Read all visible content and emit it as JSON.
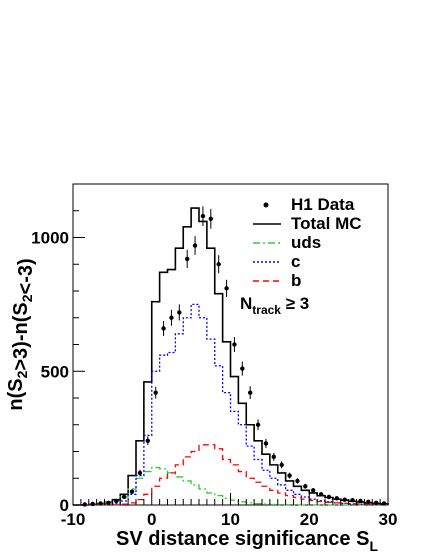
{
  "chart_data": {
    "type": "histogram",
    "xlabel": "SV distance significance S_L",
    "ylabel": "n(S_2>3)-n(S_2<-3)",
    "xlim": [
      -10,
      30
    ],
    "ylim": [
      0,
      1200
    ],
    "xticks": [
      "-10",
      "0",
      "10",
      "20",
      "30"
    ],
    "yticks": [
      "0",
      "500",
      "1000"
    ],
    "bin_edges": [
      -10,
      -9,
      -8,
      -7,
      -6,
      -5,
      -4,
      -3,
      -2,
      -1,
      0,
      1,
      2,
      3,
      4,
      5,
      6,
      7,
      8,
      9,
      10,
      11,
      12,
      13,
      14,
      15,
      16,
      17,
      18,
      19,
      20,
      21,
      22,
      23,
      24,
      25,
      26,
      27,
      28,
      29,
      30
    ],
    "legend": {
      "position": "top-right",
      "entries": [
        "H1 Data",
        "Total MC",
        "uds",
        "c",
        "b"
      ]
    },
    "annotation": "N_track ≥ 3",
    "series": [
      {
        "name": "Total MC",
        "style": "solid",
        "color": "#000000",
        "values": [
          0,
          0,
          2,
          5,
          10,
          20,
          40,
          110,
          240,
          460,
          760,
          870,
          880,
          960,
          1040,
          1110,
          1060,
          960,
          790,
          610,
          480,
          380,
          300,
          240,
          190,
          150,
          120,
          90,
          70,
          55,
          45,
          35,
          28,
          22,
          18,
          14,
          11,
          8,
          6,
          4
        ]
      },
      {
        "name": "uds",
        "style": "dashdot",
        "color": "#33cc33",
        "values": [
          0,
          0,
          1,
          3,
          8,
          15,
          30,
          60,
          100,
          125,
          140,
          135,
          120,
          105,
          90,
          75,
          60,
          45,
          35,
          25,
          18,
          12,
          8,
          5,
          3,
          2,
          1,
          1,
          0,
          0,
          0,
          0,
          0,
          0,
          0,
          0,
          0,
          0,
          0,
          0
        ]
      },
      {
        "name": "c",
        "style": "dotted",
        "color": "#0000ff",
        "values": [
          0,
          0,
          0,
          1,
          3,
          6,
          15,
          40,
          110,
          260,
          500,
          560,
          570,
          640,
          700,
          750,
          700,
          620,
          520,
          420,
          350,
          300,
          220,
          170,
          130,
          100,
          75,
          55,
          40,
          30,
          22,
          16,
          12,
          8,
          6,
          4,
          3,
          2,
          1,
          1
        ]
      },
      {
        "name": "b",
        "style": "dashed",
        "color": "#ff0000",
        "values": [
          0,
          0,
          0,
          0,
          0,
          1,
          3,
          8,
          20,
          40,
          70,
          100,
          120,
          150,
          180,
          200,
          225,
          225,
          210,
          170,
          150,
          125,
          100,
          85,
          70,
          55,
          45,
          35,
          28,
          22,
          17,
          13,
          10,
          8,
          6,
          5,
          4,
          3,
          2,
          1
        ]
      }
    ],
    "data_points": {
      "name": "H1 Data",
      "x": [
        -8.5,
        -7.5,
        -6.5,
        -5.5,
        -4.5,
        -3.5,
        -2.5,
        -1.5,
        -0.5,
        0.5,
        1.5,
        2.5,
        3.5,
        4.5,
        5.5,
        6.5,
        7.5,
        8.5,
        9.5,
        10.5,
        11.5,
        12.5,
        13.5,
        14.5,
        15.5,
        16.5,
        17.5,
        18.5,
        19.5,
        20.5,
        21.5,
        22.5,
        23.5,
        24.5,
        25.5,
        26.5,
        27.5,
        28.5,
        29.5
      ],
      "y": [
        2,
        4,
        6,
        8,
        15,
        30,
        50,
        120,
        240,
        420,
        660,
        700,
        720,
        920,
        970,
        1080,
        1070,
        900,
        810,
        600,
        510,
        420,
        300,
        230,
        180,
        150,
        110,
        90,
        70,
        55,
        40,
        30,
        25,
        20,
        18,
        15,
        12,
        8,
        6
      ],
      "yerr": [
        2,
        2,
        3,
        3,
        4,
        6,
        8,
        12,
        16,
        22,
        28,
        30,
        30,
        34,
        35,
        37,
        37,
        34,
        32,
        28,
        26,
        24,
        20,
        17,
        15,
        13,
        11,
        10,
        9,
        8,
        7,
        6,
        5,
        5,
        5,
        4,
        4,
        3,
        3
      ]
    }
  }
}
